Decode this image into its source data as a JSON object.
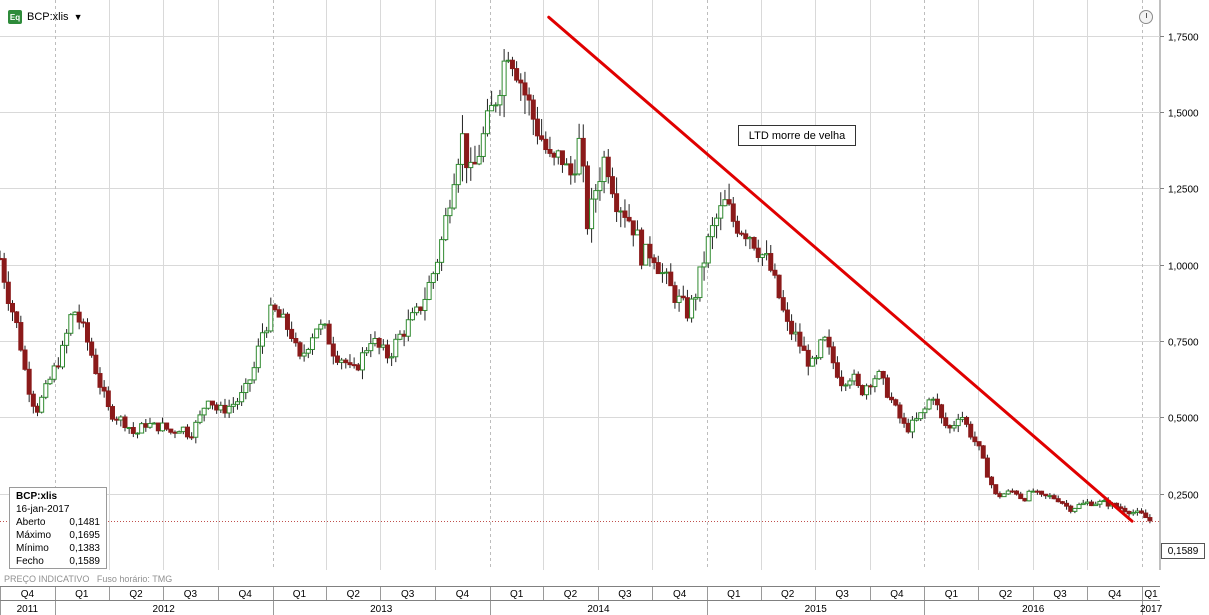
{
  "header": {
    "symbol": "BCP:xlis",
    "symbol_icon": "Eq"
  },
  "info_box": {
    "title": "BCP:xlis",
    "date": "16-jan-2017",
    "rows": [
      {
        "label": "Aberto",
        "value": "0,1481"
      },
      {
        "label": "Máximo",
        "value": "0,1695"
      },
      {
        "label": "Mínimo",
        "value": "0,1383"
      },
      {
        "label": "Fecho",
        "value": "0,1589"
      }
    ]
  },
  "footer_note": "PREÇO INDICATIVO   Fuso horário: TMG",
  "annotation": "LTD morre de velha",
  "last_price_label": "0,1589",
  "colors": {
    "up": "#2f8a2f",
    "down": "#8b1a1a",
    "trendline": "#e00000",
    "grid": "#d9d9d9",
    "last_price_line": "#c0504d"
  },
  "chart_data": {
    "type": "candlestick",
    "title": "",
    "ylim": [
      0,
      1.85
    ],
    "y_ticks": [
      {
        "value": 0.25,
        "label": "0,2500"
      },
      {
        "value": 0.5,
        "label": "0,5000"
      },
      {
        "value": 0.75,
        "label": "0,7500"
      },
      {
        "value": 1.0,
        "label": "1,0000"
      },
      {
        "value": 1.25,
        "label": "1,2500"
      },
      {
        "value": 1.5,
        "label": "1,5000"
      },
      {
        "value": 1.75,
        "label": "1,7500"
      }
    ],
    "x_range": [
      "2011-10-01",
      "2017-01-31"
    ],
    "quarters": [
      {
        "label": "Q4",
        "start": "2011-10-01"
      },
      {
        "label": "Q1",
        "start": "2012-01-01"
      },
      {
        "label": "Q2",
        "start": "2012-04-01"
      },
      {
        "label": "Q3",
        "start": "2012-07-01"
      },
      {
        "label": "Q4",
        "start": "2012-10-01"
      },
      {
        "label": "Q1",
        "start": "2013-01-01"
      },
      {
        "label": "Q2",
        "start": "2013-04-01"
      },
      {
        "label": "Q3",
        "start": "2013-07-01"
      },
      {
        "label": "Q4",
        "start": "2013-10-01"
      },
      {
        "label": "Q1",
        "start": "2014-01-01"
      },
      {
        "label": "Q2",
        "start": "2014-04-01"
      },
      {
        "label": "Q3",
        "start": "2014-07-01"
      },
      {
        "label": "Q4",
        "start": "2014-10-01"
      },
      {
        "label": "Q1",
        "start": "2015-01-01"
      },
      {
        "label": "Q2",
        "start": "2015-04-01"
      },
      {
        "label": "Q3",
        "start": "2015-07-01"
      },
      {
        "label": "Q4",
        "start": "2015-10-01"
      },
      {
        "label": "Q1",
        "start": "2016-01-01"
      },
      {
        "label": "Q2",
        "start": "2016-04-01"
      },
      {
        "label": "Q3",
        "start": "2016-07-01"
      },
      {
        "label": "Q4",
        "start": "2016-10-01"
      },
      {
        "label": "Q1",
        "start": "2017-01-01"
      }
    ],
    "years": [
      {
        "label": "2011",
        "start": "2011-10-01"
      },
      {
        "label": "2012",
        "start": "2012-01-01"
      },
      {
        "label": "2013",
        "start": "2013-01-01"
      },
      {
        "label": "2014",
        "start": "2014-01-01"
      },
      {
        "label": "2015",
        "start": "2015-01-01"
      },
      {
        "label": "2016",
        "start": "2016-01-01"
      },
      {
        "label": "2017",
        "start": "2017-01-01"
      }
    ],
    "series": [
      {
        "name": "BCP:xlis",
        "interval": "weekly",
        "approx_closes": [
          [
            "2011-10-01",
            1.02
          ],
          [
            "2011-10-15",
            0.9
          ],
          [
            "2011-11-01",
            0.78
          ],
          [
            "2011-11-15",
            0.62
          ],
          [
            "2011-12-01",
            0.52
          ],
          [
            "2011-12-15",
            0.58
          ],
          [
            "2012-01-01",
            0.66
          ],
          [
            "2012-01-15",
            0.72
          ],
          [
            "2012-02-01",
            0.86
          ],
          [
            "2012-02-15",
            0.8
          ],
          [
            "2012-03-01",
            0.72
          ],
          [
            "2012-03-15",
            0.62
          ],
          [
            "2012-04-01",
            0.52
          ],
          [
            "2012-04-15",
            0.5
          ],
          [
            "2012-05-01",
            0.48
          ],
          [
            "2012-05-15",
            0.44
          ],
          [
            "2012-06-01",
            0.48
          ],
          [
            "2012-06-15",
            0.47
          ],
          [
            "2012-07-01",
            0.47
          ],
          [
            "2012-07-15",
            0.45
          ],
          [
            "2012-08-01",
            0.47
          ],
          [
            "2012-08-15",
            0.44
          ],
          [
            "2012-09-01",
            0.5
          ],
          [
            "2012-09-15",
            0.57
          ],
          [
            "2012-10-01",
            0.52
          ],
          [
            "2012-10-15",
            0.53
          ],
          [
            "2012-11-01",
            0.55
          ],
          [
            "2012-11-15",
            0.58
          ],
          [
            "2012-12-01",
            0.66
          ],
          [
            "2012-12-15",
            0.78
          ],
          [
            "2013-01-01",
            0.85
          ],
          [
            "2013-01-15",
            0.82
          ],
          [
            "2013-02-01",
            0.78
          ],
          [
            "2013-02-15",
            0.68
          ],
          [
            "2013-03-01",
            0.74
          ],
          [
            "2013-03-15",
            0.8
          ],
          [
            "2013-04-01",
            0.78
          ],
          [
            "2013-04-15",
            0.71
          ],
          [
            "2013-05-01",
            0.69
          ],
          [
            "2013-05-15",
            0.64
          ],
          [
            "2013-06-01",
            0.7
          ],
          [
            "2013-06-15",
            0.76
          ],
          [
            "2013-07-01",
            0.72
          ],
          [
            "2013-07-15",
            0.7
          ],
          [
            "2013-08-01",
            0.76
          ],
          [
            "2013-08-15",
            0.8
          ],
          [
            "2013-09-01",
            0.84
          ],
          [
            "2013-09-15",
            0.9
          ],
          [
            "2013-10-01",
            0.99
          ],
          [
            "2013-10-15",
            1.1
          ],
          [
            "2013-11-01",
            1.3
          ],
          [
            "2013-11-15",
            1.42
          ],
          [
            "2013-12-01",
            1.28
          ],
          [
            "2013-12-15",
            1.38
          ],
          [
            "2014-01-01",
            1.48
          ],
          [
            "2014-01-15",
            1.58
          ],
          [
            "2014-02-01",
            1.72
          ],
          [
            "2014-02-15",
            1.65
          ],
          [
            "2014-03-01",
            1.56
          ],
          [
            "2014-03-15",
            1.48
          ],
          [
            "2014-04-01",
            1.4
          ],
          [
            "2014-04-15",
            1.32
          ],
          [
            "2014-05-01",
            1.36
          ],
          [
            "2014-05-15",
            1.28
          ],
          [
            "2014-06-01",
            1.4
          ],
          [
            "2014-06-15",
            1.12
          ],
          [
            "2014-07-01",
            1.28
          ],
          [
            "2014-07-15",
            1.36
          ],
          [
            "2014-08-01",
            1.22
          ],
          [
            "2014-08-15",
            1.18
          ],
          [
            "2014-09-01",
            1.12
          ],
          [
            "2014-09-15",
            1.02
          ],
          [
            "2014-10-01",
            1.05
          ],
          [
            "2014-10-15",
            0.98
          ],
          [
            "2014-11-01",
            0.92
          ],
          [
            "2014-11-15",
            0.88
          ],
          [
            "2014-12-01",
            0.84
          ],
          [
            "2014-12-15",
            0.92
          ],
          [
            "2015-01-01",
            1.06
          ],
          [
            "2015-01-15",
            1.14
          ],
          [
            "2015-02-01",
            1.2
          ],
          [
            "2015-02-15",
            1.14
          ],
          [
            "2015-03-01",
            1.12
          ],
          [
            "2015-03-15",
            1.1
          ],
          [
            "2015-04-01",
            1.04
          ],
          [
            "2015-04-15",
            1.0
          ],
          [
            "2015-05-01",
            0.9
          ],
          [
            "2015-05-15",
            0.8
          ],
          [
            "2015-06-01",
            0.76
          ],
          [
            "2015-06-15",
            0.7
          ],
          [
            "2015-07-01",
            0.66
          ],
          [
            "2015-07-15",
            0.76
          ],
          [
            "2015-08-01",
            0.68
          ],
          [
            "2015-08-15",
            0.62
          ],
          [
            "2015-09-01",
            0.64
          ],
          [
            "2015-09-15",
            0.58
          ],
          [
            "2015-10-01",
            0.62
          ],
          [
            "2015-10-15",
            0.64
          ],
          [
            "2015-11-01",
            0.58
          ],
          [
            "2015-11-15",
            0.52
          ],
          [
            "2015-12-01",
            0.46
          ],
          [
            "2015-12-15",
            0.48
          ],
          [
            "2016-01-01",
            0.52
          ],
          [
            "2016-01-15",
            0.58
          ],
          [
            "2016-02-01",
            0.48
          ],
          [
            "2016-02-15",
            0.46
          ],
          [
            "2016-03-01",
            0.52
          ],
          [
            "2016-03-15",
            0.46
          ],
          [
            "2016-04-01",
            0.4
          ],
          [
            "2016-04-15",
            0.32
          ],
          [
            "2016-05-01",
            0.24
          ],
          [
            "2016-05-15",
            0.25
          ],
          [
            "2016-06-01",
            0.26
          ],
          [
            "2016-06-15",
            0.23
          ],
          [
            "2016-07-01",
            0.26
          ],
          [
            "2016-07-15",
            0.24
          ],
          [
            "2016-08-01",
            0.24
          ],
          [
            "2016-08-15",
            0.23
          ],
          [
            "2016-09-01",
            0.2
          ],
          [
            "2016-09-15",
            0.21
          ],
          [
            "2016-10-01",
            0.22
          ],
          [
            "2016-10-15",
            0.22
          ],
          [
            "2016-11-01",
            0.22
          ],
          [
            "2016-11-15",
            0.21
          ],
          [
            "2016-12-01",
            0.2
          ],
          [
            "2016-12-15",
            0.19
          ],
          [
            "2017-01-01",
            0.18
          ],
          [
            "2017-01-16",
            0.1589
          ]
        ]
      }
    ],
    "trendline": {
      "label": "LTD morre de velha",
      "start": [
        "2014-04-10",
        1.81
      ],
      "end": [
        "2016-12-15",
        0.16
      ]
    },
    "last_price": 0.1589,
    "grid": true
  }
}
